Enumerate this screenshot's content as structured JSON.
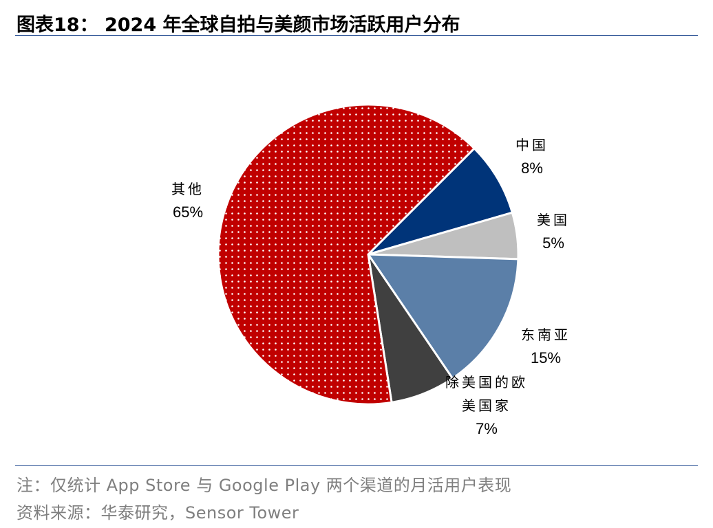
{
  "chart_data": {
    "type": "pie",
    "title": "图表18： 2024 年全球自拍与美颜市场活跃用户分布",
    "categories": [
      "中国",
      "美国",
      "东南亚",
      "除美国的欧美国家",
      "其他"
    ],
    "values": [
      8,
      5,
      15,
      7,
      65
    ],
    "value_labels": [
      "8%",
      "5%",
      "15%",
      "7%",
      "65%"
    ],
    "colors": [
      "#003479",
      "#bfbfbf",
      "#5b7fa8",
      "#404040",
      "#c00000"
    ],
    "notes": [
      "注：仅统计 App Store 与 Google Play 两个渠道的月活用户表现",
      "资料来源：华泰研究，Sensor Tower"
    ]
  }
}
